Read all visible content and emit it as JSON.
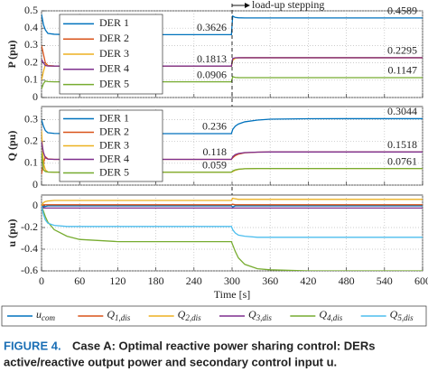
{
  "chart_data": [
    {
      "type": "line",
      "ylabel": "P (pu)",
      "xlim": [
        0,
        600
      ],
      "xticks": [
        0,
        60,
        120,
        180,
        240,
        300,
        360,
        420,
        480,
        540,
        600
      ],
      "xtick_labels": false,
      "ylim": [
        0,
        0.5
      ],
      "yticks": [
        0,
        0.1,
        0.2,
        0.3,
        0.4,
        0.5
      ],
      "grid": true,
      "legend": "upper left",
      "event": {
        "x": 300,
        "label": "load-up stepping"
      },
      "x": [
        0,
        3,
        6,
        10,
        20,
        40,
        60,
        120,
        180,
        240,
        299,
        301,
        305,
        310,
        320,
        340,
        360,
        420,
        480,
        540,
        600
      ],
      "series": [
        {
          "name": "DER 1",
          "color": "#0072BD",
          "values": [
            0.48,
            0.42,
            0.39,
            0.37,
            0.365,
            0.3626,
            0.3626,
            0.3626,
            0.3626,
            0.3626,
            0.3626,
            0.47,
            0.462,
            0.46,
            0.459,
            0.4589,
            0.4589,
            0.4589,
            0.4589,
            0.4589,
            0.4589
          ]
        },
        {
          "name": "DER 2",
          "color": "#D95319",
          "values": [
            0.3,
            0.25,
            0.2,
            0.185,
            0.182,
            0.1813,
            0.1813,
            0.1813,
            0.1813,
            0.1813,
            0.1813,
            0.22,
            0.228,
            0.229,
            0.2295,
            0.2295,
            0.2295,
            0.2295,
            0.2295,
            0.2295,
            0.2295
          ]
        },
        {
          "name": "DER 3",
          "color": "#EDB120",
          "values": [
            0.1,
            0.15,
            0.19,
            0.183,
            0.1813,
            0.1813,
            0.1813,
            0.1813,
            0.1813,
            0.1813,
            0.1813,
            0.215,
            0.226,
            0.229,
            0.2295,
            0.2295,
            0.2295,
            0.2295,
            0.2295,
            0.2295,
            0.2295
          ]
        },
        {
          "name": "DER 4",
          "color": "#7E2F8E",
          "values": [
            0.22,
            0.2,
            0.185,
            0.182,
            0.1813,
            0.1813,
            0.1813,
            0.1813,
            0.1813,
            0.1813,
            0.1813,
            0.225,
            0.229,
            0.2295,
            0.2295,
            0.2295,
            0.2295,
            0.2295,
            0.2295,
            0.2295,
            0.2295
          ]
        },
        {
          "name": "DER 5",
          "color": "#77AC30",
          "values": [
            0.05,
            0.08,
            0.095,
            0.092,
            0.0906,
            0.0906,
            0.0906,
            0.0906,
            0.0906,
            0.0906,
            0.0906,
            0.12,
            0.116,
            0.115,
            0.1147,
            0.1147,
            0.1147,
            0.1147,
            0.1147,
            0.1147,
            0.1147
          ]
        }
      ],
      "annotations": [
        {
          "x": 300,
          "y": 0.3626,
          "text": "0.3626"
        },
        {
          "x": 300,
          "y": 0.1813,
          "text": "0.1813"
        },
        {
          "x": 300,
          "y": 0.0906,
          "text": "0.0906"
        },
        {
          "x": 600,
          "y": 0.4589,
          "text": "0.4589"
        },
        {
          "x": 600,
          "y": 0.2295,
          "text": "0.2295"
        },
        {
          "x": 600,
          "y": 0.1147,
          "text": "0.1147"
        }
      ]
    },
    {
      "type": "line",
      "ylabel": "Q (pu)",
      "xlim": [
        0,
        600
      ],
      "xticks": [
        0,
        60,
        120,
        180,
        240,
        300,
        360,
        420,
        480,
        540,
        600
      ],
      "xtick_labels": false,
      "ylim": [
        0,
        0.36
      ],
      "yticks": [
        0,
        0.1,
        0.2,
        0.3
      ],
      "grid": true,
      "legend": "upper left",
      "x": [
        0,
        3,
        6,
        10,
        20,
        40,
        60,
        120,
        180,
        240,
        299,
        301,
        305,
        310,
        320,
        340,
        360,
        420,
        480,
        540,
        600
      ],
      "series": [
        {
          "name": "DER 1",
          "color": "#0072BD",
          "values": [
            0.3,
            0.27,
            0.25,
            0.24,
            0.237,
            0.236,
            0.236,
            0.236,
            0.236,
            0.236,
            0.236,
            0.255,
            0.27,
            0.28,
            0.29,
            0.298,
            0.302,
            0.304,
            0.3044,
            0.3044,
            0.3044
          ]
        },
        {
          "name": "DER 2",
          "color": "#D95319",
          "values": [
            0.05,
            0.1,
            0.13,
            0.12,
            0.118,
            0.118,
            0.118,
            0.118,
            0.118,
            0.118,
            0.118,
            0.125,
            0.135,
            0.142,
            0.148,
            0.151,
            0.1518,
            0.1518,
            0.1518,
            0.1518,
            0.1518
          ]
        },
        {
          "name": "DER 3",
          "color": "#EDB120",
          "values": [
            0.25,
            0.1,
            0.07,
            0.06,
            0.059,
            0.059,
            0.059,
            0.059,
            0.059,
            0.059,
            0.059,
            0.062,
            0.068,
            0.072,
            0.075,
            0.076,
            0.0761,
            0.0761,
            0.0761,
            0.0761,
            0.0761
          ]
        },
        {
          "name": "DER 4",
          "color": "#7E2F8E",
          "values": [
            0.2,
            0.15,
            0.125,
            0.119,
            0.118,
            0.118,
            0.118,
            0.118,
            0.118,
            0.118,
            0.118,
            0.13,
            0.14,
            0.145,
            0.149,
            0.151,
            0.1518,
            0.1518,
            0.1518,
            0.1518,
            0.1518
          ]
        },
        {
          "name": "DER 5",
          "color": "#77AC30",
          "values": [
            0.15,
            0.07,
            0.062,
            0.06,
            0.059,
            0.059,
            0.059,
            0.059,
            0.059,
            0.059,
            0.059,
            0.065,
            0.07,
            0.073,
            0.075,
            0.0761,
            0.0761,
            0.0761,
            0.0761,
            0.0761,
            0.0761
          ]
        }
      ],
      "annotations": [
        {
          "x": 300,
          "y": 0.236,
          "text": "0.236"
        },
        {
          "x": 300,
          "y": 0.118,
          "text": "0.118"
        },
        {
          "x": 300,
          "y": 0.059,
          "text": "0.059"
        },
        {
          "x": 600,
          "y": 0.3044,
          "text": "0.3044"
        },
        {
          "x": 600,
          "y": 0.1518,
          "text": "0.1518"
        },
        {
          "x": 600,
          "y": 0.0761,
          "text": "0.0761"
        }
      ]
    },
    {
      "type": "line",
      "ylabel": "u (pu)",
      "xlabel": "Time [s]",
      "xlim": [
        0,
        600
      ],
      "xticks": [
        0,
        60,
        120,
        180,
        240,
        300,
        360,
        420,
        480,
        540,
        600
      ],
      "xtick_labels": true,
      "ylim": [
        -0.6,
        0.1
      ],
      "yticks": [
        -0.6,
        -0.4,
        -0.2,
        0
      ],
      "grid": true,
      "legend": "below",
      "x": [
        0,
        3,
        6,
        10,
        20,
        40,
        60,
        120,
        180,
        240,
        299,
        301,
        305,
        310,
        320,
        340,
        360,
        420,
        480,
        540,
        600
      ],
      "series": [
        {
          "name": "u_com",
          "color": "#0072BD",
          "values": [
            0,
            -0.01,
            -0.005,
            0,
            0,
            0,
            0,
            0,
            0,
            0,
            0,
            -0.01,
            0,
            0,
            0,
            0,
            0,
            0,
            0,
            0,
            0
          ]
        },
        {
          "name": "Q_1,dis",
          "color": "#D95319",
          "values": [
            0,
            0.01,
            0.01,
            0.01,
            0.01,
            0.01,
            0.01,
            0.01,
            0.01,
            0.01,
            0.01,
            0.015,
            0.01,
            0.01,
            0.01,
            0.01,
            0.01,
            0.01,
            0.01,
            0.01,
            0.01
          ]
        },
        {
          "name": "Q_2,dis",
          "color": "#EDB120",
          "values": [
            0,
            0.03,
            0.04,
            0.045,
            0.05,
            0.05,
            0.05,
            0.05,
            0.05,
            0.05,
            0.05,
            0.07,
            0.065,
            0.06,
            0.06,
            0.06,
            0.06,
            0.06,
            0.06,
            0.06,
            0.06
          ]
        },
        {
          "name": "Q_3,dis",
          "color": "#7E2F8E",
          "values": [
            0,
            -0.02,
            -0.02,
            -0.02,
            -0.02,
            -0.02,
            -0.02,
            -0.02,
            -0.02,
            -0.02,
            -0.02,
            -0.02,
            -0.02,
            -0.02,
            -0.02,
            -0.02,
            -0.02,
            -0.02,
            -0.02,
            -0.02,
            -0.02
          ]
        },
        {
          "name": "Q_4,dis",
          "color": "#77AC30",
          "values": [
            0,
            -0.05,
            -0.1,
            -0.15,
            -0.22,
            -0.28,
            -0.31,
            -0.33,
            -0.33,
            -0.33,
            -0.33,
            -0.36,
            -0.42,
            -0.48,
            -0.54,
            -0.58,
            -0.59,
            -0.6,
            -0.6,
            -0.6,
            -0.6
          ]
        },
        {
          "name": "Q_5,dis",
          "color": "#4DBEEE",
          "values": [
            0,
            -0.08,
            -0.13,
            -0.16,
            -0.18,
            -0.19,
            -0.19,
            -0.19,
            -0.19,
            -0.19,
            -0.19,
            -0.22,
            -0.25,
            -0.27,
            -0.28,
            -0.29,
            -0.29,
            -0.29,
            -0.29,
            -0.29,
            -0.29
          ]
        }
      ]
    }
  ],
  "caption": {
    "label": "FIGURE 4.",
    "lines": [
      "Case A: Optimal reactive power sharing control: DERs",
      "active/reactive output power and secondary control input u."
    ]
  }
}
